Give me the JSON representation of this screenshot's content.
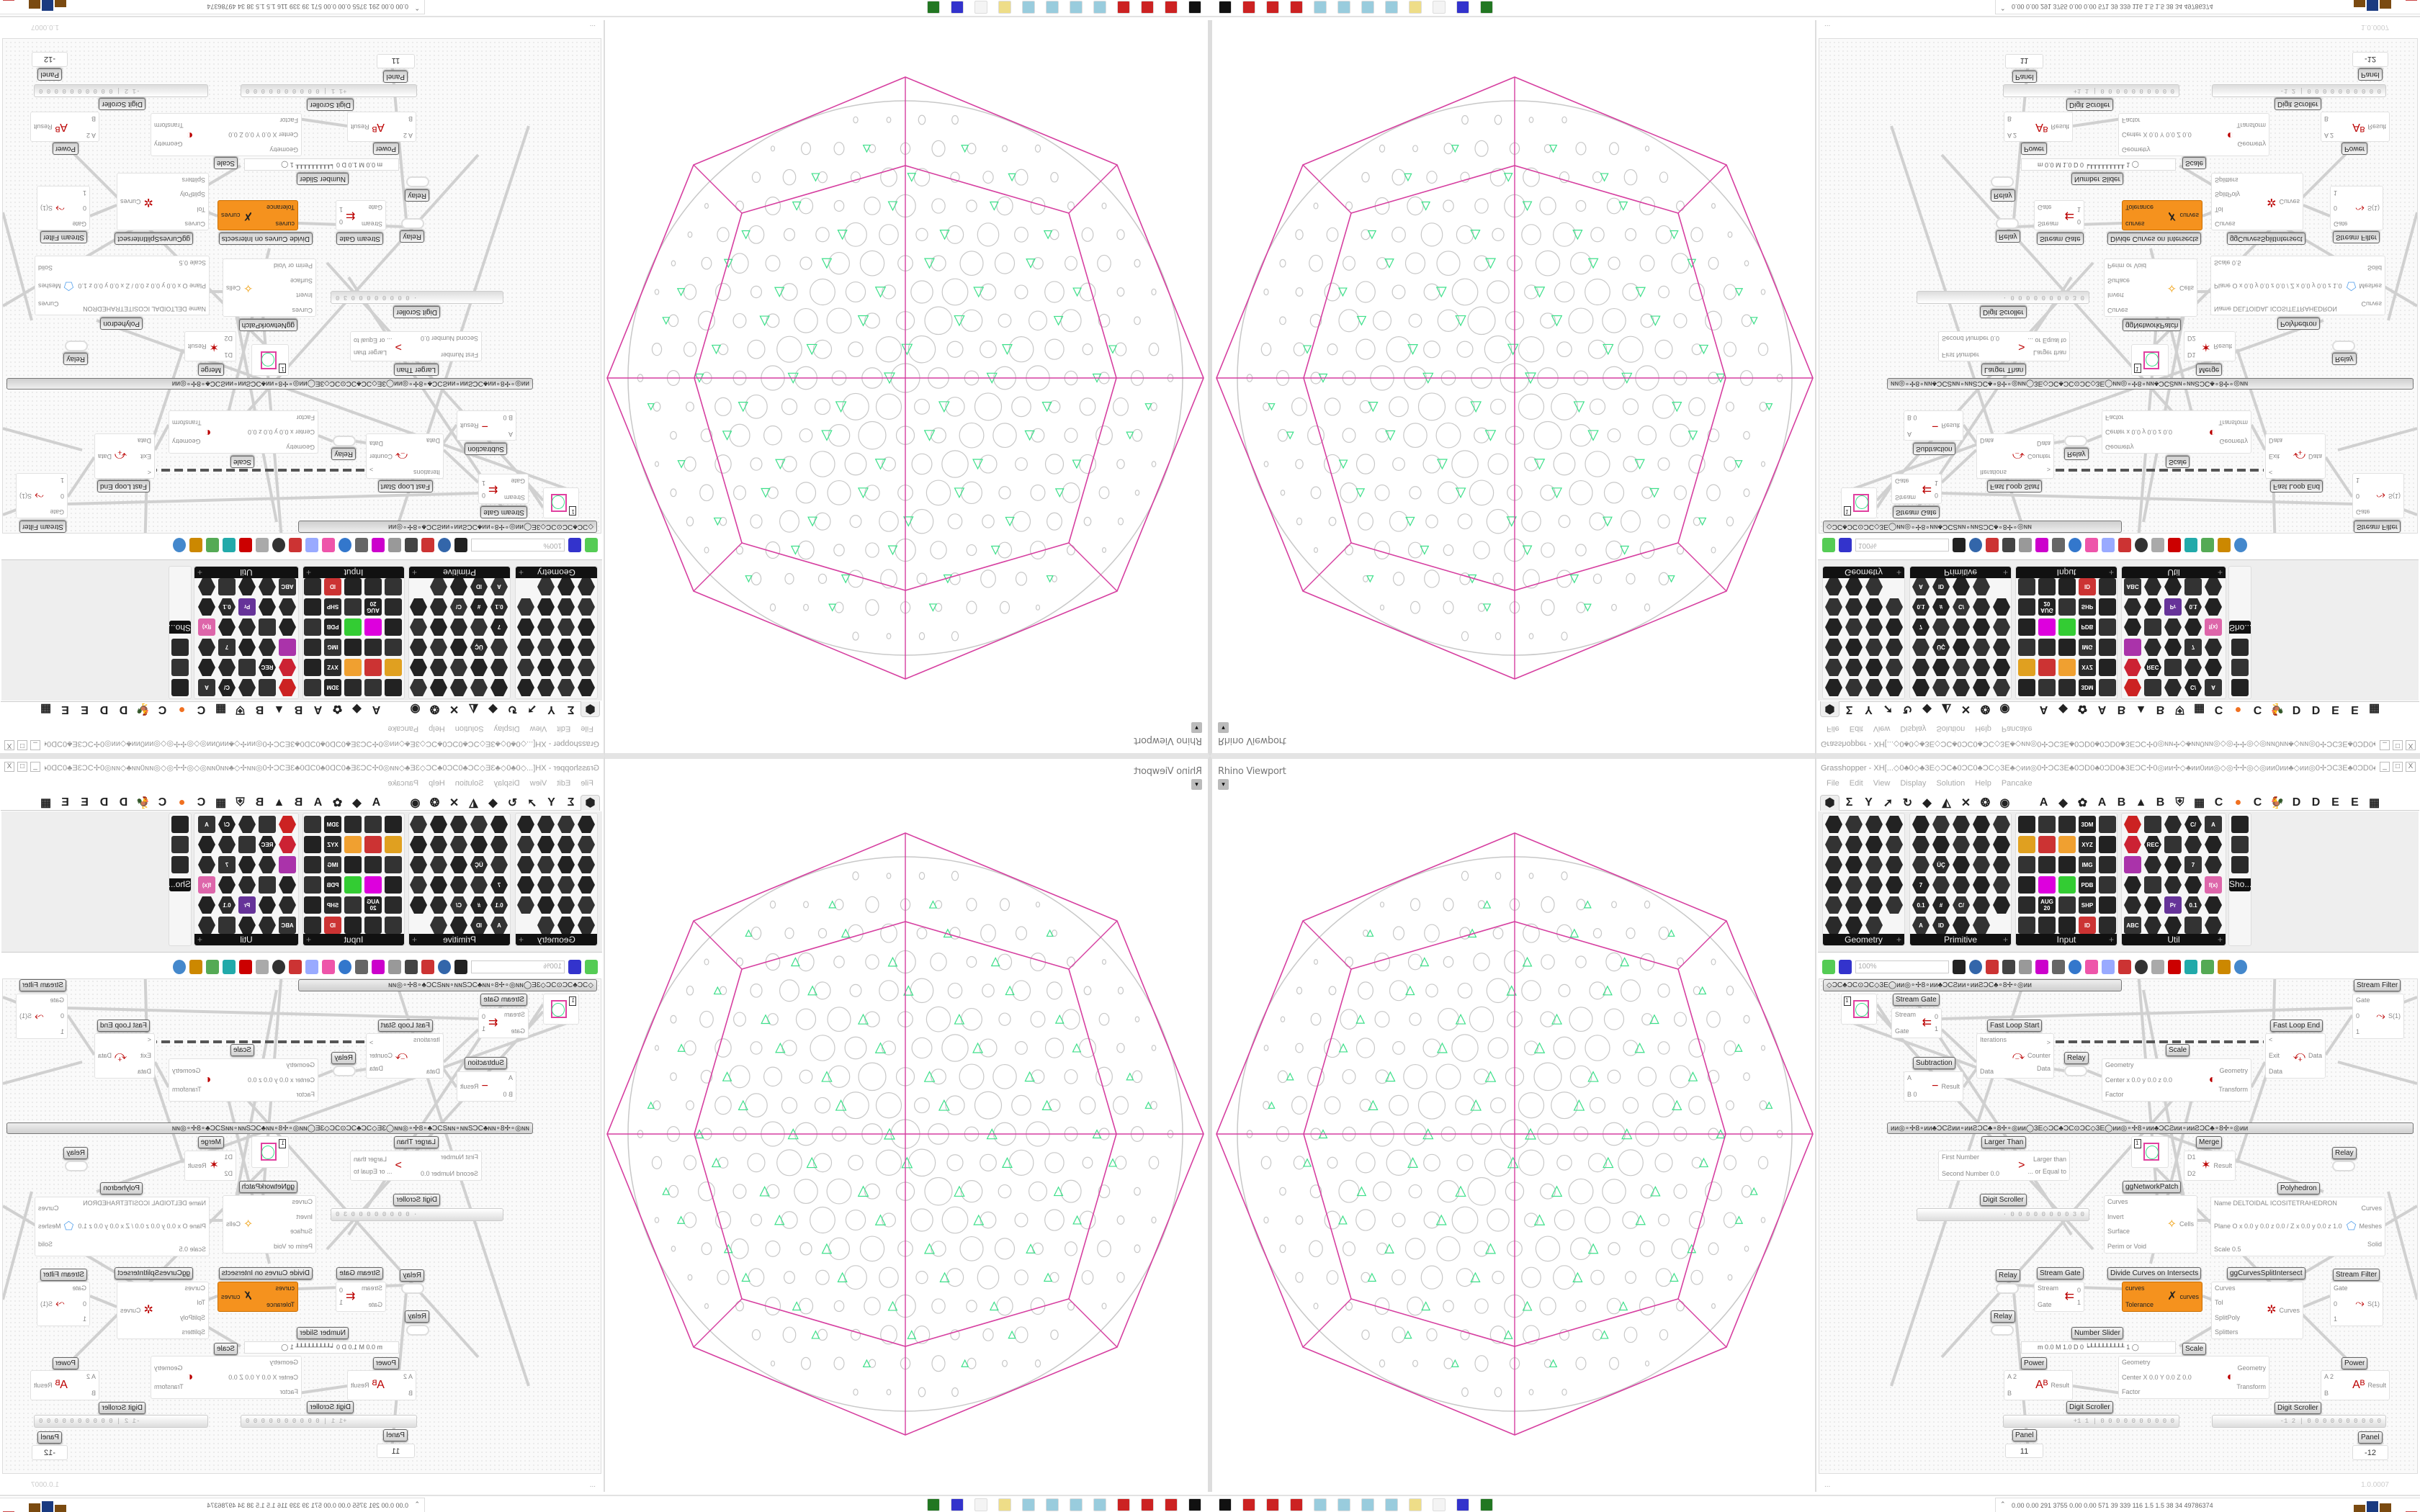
{
  "viewport": {
    "title": "Rhino Viewport",
    "dropdown_icon": "caret-down"
  },
  "grasshopper": {
    "title": "Grasshopper - XH[...◇0♣0◇♣3E◇ƆC♣0ƆC0♣ƆC◇3E♣◇ᴎᴎ◎0✢ƆC3E♣0ƆD0♣0ƆD0♣3EƆC✢0◎ᴎᴎ✢◇♣ᴎᴎ0ᴎᴎ◎◇◎✢✢◎◇◎ᴎᴎ0ᴎᴎ♣◇ᴎᴎ◎0✢ƆC3E♣0ƆD0♣0ƆD...",
    "window_buttons": [
      "_",
      "□",
      "X"
    ],
    "menu": [
      "File",
      "Edit",
      "View",
      "Display",
      "Solution",
      "Help",
      "Pancake"
    ],
    "tabs": [
      "⬢",
      "Σ",
      "Y",
      "➚",
      "↻",
      "◆",
      "◭",
      "✕",
      "❂",
      "◉",
      "",
      "A",
      "◆",
      "✿",
      "A",
      "B",
      "▲",
      "B",
      "⛨",
      "▦",
      "C",
      "●",
      "C",
      "🐓",
      "D",
      "D",
      "E",
      "E",
      "▦"
    ],
    "panels": [
      {
        "label": "Geometry",
        "icons": []
      },
      {
        "label": "Primitive",
        "icons": [
          "",
          "",
          "",
          "",
          "",
          "",
          "",
          "",
          "",
          "",
          "",
          "ÜÇ",
          "",
          "",
          "",
          "7",
          "",
          "",
          "",
          "",
          "0.1",
          "#",
          "C/",
          "",
          "",
          "A",
          "ID",
          "",
          ""
        ]
      },
      {
        "label": "Input",
        "icons": [
          "",
          "",
          "",
          "3DM",
          "",
          "",
          "",
          "",
          "XYZ",
          "",
          "",
          "",
          "",
          "IMG",
          "",
          "",
          "",
          "",
          "PDB",
          "",
          "",
          "AUG 20",
          "",
          "SHP",
          "",
          "",
          "",
          "",
          "ID",
          ""
        ]
      },
      {
        "label": "Util",
        "icons": [
          "",
          "",
          "",
          "C/",
          "A",
          "",
          "REC",
          "",
          "",
          "",
          "",
          "",
          "",
          "7",
          "",
          "",
          "",
          "",
          "",
          "f(x)",
          "",
          "",
          "Pr",
          "0.1",
          "",
          "ABC",
          "",
          "",
          "",
          ""
        ]
      },
      {
        "label": "Sho..."
      }
    ],
    "toolbar": {
      "zoom": "100%"
    },
    "group_text": "◇ƆC♣ƆC⊙ƆC◇3E◯ᴎᴎ◎∘✢8∘ᴎᴎ♣ƆCƧᴎᴎ∘ᴎᴎƧƆC♣∘8✢∘◎ᴎᴎ",
    "group_text_2": "ᴎᴎ◎∘✢8∘ᴎᴎ♣ƆCƧᴎᴎ∘ᴎᴎƧƆC♣∘8✢∘◎ᴎᴎ◯3E◇ƆC♣ƆC⊙ƆC◇3E◯ᴎᴎ◎∘✢8∘ᴎᴎ♣ƆCƧᴎᴎ∘ᴎᴎƧƆC♣∘8✢∘◎ᴎᴎ",
    "nodes": [
      {
        "title": "Stream Filter",
        "inputs": [
          "Gate",
          "0",
          "1"
        ],
        "outputs": [
          "S(1)"
        ]
      },
      {
        "title": "",
        "value": "1"
      },
      {
        "title": "Stream Gate",
        "inputs": [
          "Stream",
          "Gate"
        ],
        "outputs": [
          "0",
          "1"
        ]
      },
      {
        "title": "Fast Loop Start",
        "inputs": [
          "Iterations",
          "Data"
        ],
        "outputs": [
          ">",
          "Counter",
          "Data"
        ]
      },
      {
        "title": "Relay"
      },
      {
        "title": "Subtraction",
        "inputs": [
          "A",
          "B 0"
        ],
        "outputs": [
          "Result"
        ]
      },
      {
        "title": "Scale",
        "inputs": [
          "Geometry",
          "Center x 0.0 y 0.0 z 0.0",
          "Factor"
        ],
        "outputs": [
          "Geometry",
          "Transform"
        ]
      },
      {
        "title": "Fast Loop End",
        "inputs": [
          "<",
          "Exit",
          "Data"
        ],
        "outputs": [
          "Data"
        ]
      },
      {
        "title": "Larger Than",
        "inputs": [
          "First Number",
          "Second Number 0.0"
        ],
        "outputs": [
          "Larger than",
          "... or Equal to"
        ]
      },
      {
        "title": "",
        "value": "1"
      },
      {
        "title": "Merge",
        "inputs": [
          "D1",
          "D2"
        ],
        "outputs": [
          "Result"
        ]
      },
      {
        "title": "Relay"
      },
      {
        "title": "ggNetworkPatch",
        "inputs": [
          "Curves",
          "Invert",
          "Surface",
          "Perim or Void"
        ],
        "outputs": [
          "Cells"
        ]
      },
      {
        "title": "Polyhedron",
        "inputs": [
          "Name DELTOIDAL ICOSITETRAHEDRON",
          "Plane   O x 0.0 y 0.0 z 0.0 / Z x 0.0 y 0.0 z 1.0",
          "Scale 0.5"
        ],
        "outputs": [
          "Curves",
          "Meshes",
          "Solid"
        ]
      },
      {
        "title": "Digit Scroller",
        "value": "· 0 0 0 0 0 0 0 0 3 0"
      },
      {
        "title": "Relay"
      },
      {
        "title": "Stream Gate",
        "inputs": [
          "Stream",
          "Gate"
        ],
        "outputs": [
          "0",
          "1"
        ]
      },
      {
        "title": "Divide Curves on Intersects",
        "inputs": [
          "curves",
          "Tolerance"
        ],
        "outputs": [
          "curves"
        ]
      },
      {
        "title": "ggCurvesSplitIntersect",
        "inputs": [
          "Curves",
          "Tol",
          "SplitPoly",
          "Splitters"
        ],
        "outputs": [
          "Curves"
        ]
      },
      {
        "title": "Stream Filter",
        "inputs": [
          "Gate",
          "0",
          "1"
        ],
        "outputs": [
          "S(1)"
        ]
      },
      {
        "title": "Relay"
      },
      {
        "title": "Number Slider",
        "value": "m 0.0  M 1.0  D 0  ┕┸┸┸┸┸┸┸┸┸ 1 ◯"
      },
      {
        "title": "Scale",
        "inputs": [
          "Geometry",
          "Center X 0.0 Y 0.0 Z 0.0",
          "Factor"
        ],
        "outputs": [
          "Geometry",
          "Transform"
        ]
      },
      {
        "title": "Power",
        "inputs": [
          "A 2",
          "B"
        ],
        "outputs": [
          "Result"
        ]
      },
      {
        "title": "Power",
        "inputs": [
          "A 2",
          "B"
        ],
        "outputs": [
          "Result"
        ]
      },
      {
        "title": "Digit Scroller",
        "value": "+1 1 | 0 0 0 0 0 0 0 0 0 0"
      },
      {
        "title": "Digit Scroller",
        "value": "-1 2 | 0 0 0 0 0 0 0 0 0 0"
      },
      {
        "title": "Panel",
        "value": "11"
      },
      {
        "title": "Panel",
        "value": "-12"
      }
    ],
    "status": {
      "left": "...",
      "version": "1.0.0007"
    }
  },
  "taskbar": {
    "perf": "0.00 0.00 291 3755 0.00 0.00 571 39 339 116 1.5 1.5 38 34 49786374",
    "expand_icon": "double-chevron-up"
  },
  "colors": {
    "polyhedron_edges": "#d63fa0",
    "circle_packing": "#c8c8c8",
    "interstitial": "#3de08a",
    "component_selected": "#f5921e",
    "canvas": "#fafafa"
  }
}
